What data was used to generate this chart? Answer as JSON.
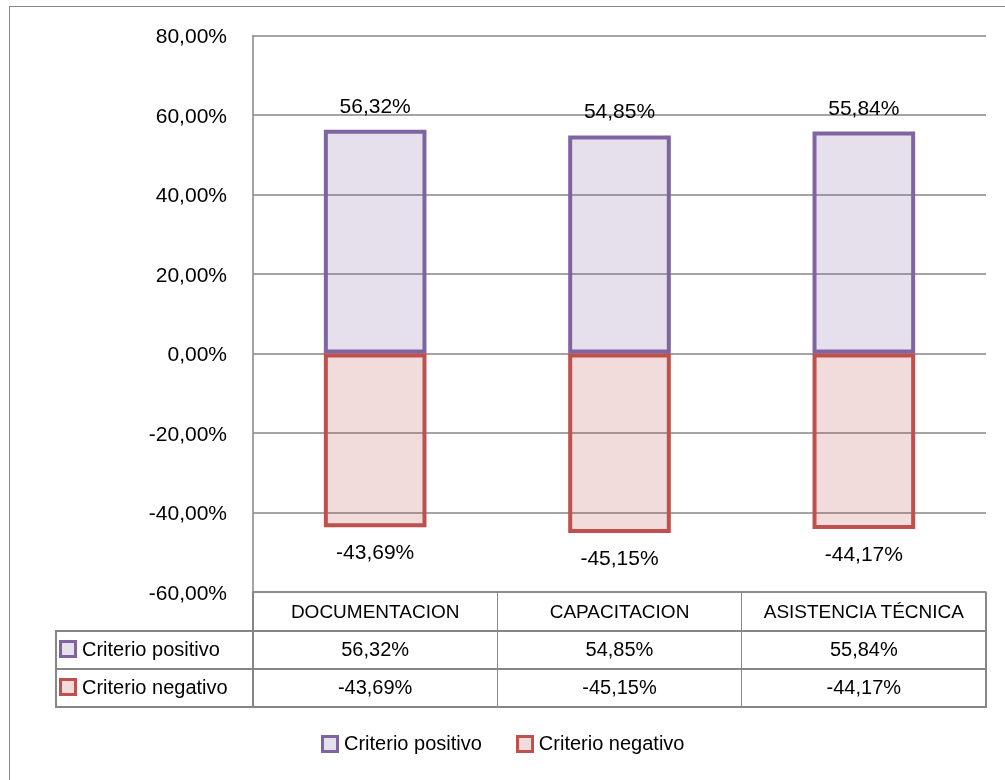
{
  "chart_data": {
    "type": "bar",
    "categories": [
      "DOCUMENTACION",
      "CAPACITACION",
      "ASISTENCIA TÉCNICA"
    ],
    "series": [
      {
        "name": "Criterio positivo",
        "color": "#8064a2",
        "values": [
          56.32,
          54.85,
          55.84
        ],
        "value_labels": [
          "56,32%",
          "54,85%",
          "55,84%"
        ]
      },
      {
        "name": "Criterio negativo",
        "color": "#c0504d",
        "values": [
          -43.69,
          -45.15,
          -44.17
        ],
        "value_labels": [
          "-43,69%",
          "-45,15%",
          "-44,17%"
        ]
      }
    ],
    "stacked": true,
    "ylim": [
      -60,
      80
    ],
    "yticks": [
      {
        "value": -60,
        "label": "-60,00%"
      },
      {
        "value": -40,
        "label": "-40,00%"
      },
      {
        "value": -20,
        "label": "-20,00%"
      },
      {
        "value": 0,
        "label": "0,00%"
      },
      {
        "value": 20,
        "label": "20,00%"
      },
      {
        "value": 40,
        "label": "40,00%"
      },
      {
        "value": 60,
        "label": "60,00%"
      },
      {
        "value": 80,
        "label": "80,00%"
      }
    ],
    "grid": "y",
    "legend": "bottom"
  }
}
